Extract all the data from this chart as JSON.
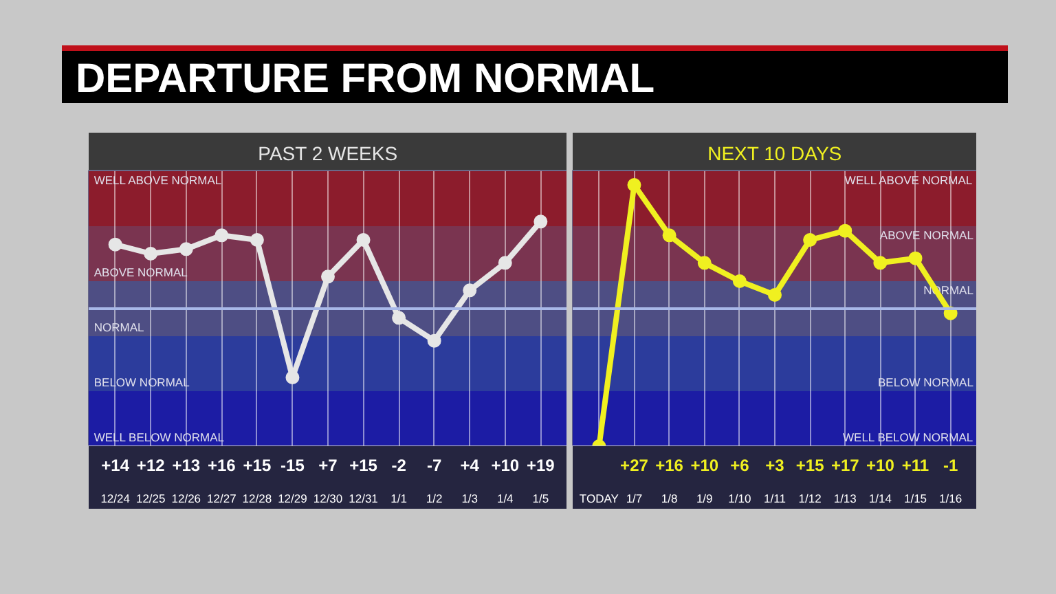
{
  "chart_data": [
    {
      "type": "line",
      "title": "DEPARTURE FROM NORMAL",
      "subtitle": "PAST 2 WEEKS",
      "categories": [
        "12/24",
        "12/25",
        "12/26",
        "12/27",
        "12/28",
        "12/29",
        "12/30",
        "12/31",
        "1/1",
        "1/2",
        "1/3",
        "1/4",
        "1/5"
      ],
      "series": [
        {
          "color": "#e6e6e6",
          "values": [
            14,
            12,
            13,
            16,
            15,
            -15,
            7,
            15,
            -2,
            -7,
            4,
            10,
            19
          ],
          "value_labels": [
            "+14",
            "+12",
            "+13",
            "+16",
            "+15",
            "-15",
            "+7",
            "+15",
            "-2",
            "-7",
            "+4",
            "+10",
            "+19"
          ]
        }
      ],
      "ylim": [
        -30,
        30
      ],
      "tick_labels": "x",
      "grid": "x",
      "marker": "circle",
      "line_style": "solid",
      "bands": [
        {
          "axis": "y",
          "from": 18,
          "to": 30,
          "label": "WELL ABOVE NORMAL",
          "color": "#8c1c2c"
        },
        {
          "axis": "y",
          "from": 6,
          "to": 18,
          "label": "ABOVE NORMAL",
          "color": "#7a3450"
        },
        {
          "axis": "y",
          "from": -6,
          "to": 6,
          "label": "NORMAL",
          "color": "#4e4e84"
        },
        {
          "axis": "y",
          "from": -18,
          "to": -6,
          "label": "BELOW NORMAL",
          "color": "#2c3c9c"
        },
        {
          "axis": "y",
          "from": -30,
          "to": -18,
          "label": "WELL BELOW NORMAL",
          "color": "#1c1ca4"
        }
      ],
      "ref_lines": [
        {
          "axis": "y",
          "value": 0,
          "color": "#a8b8e8"
        }
      ]
    },
    {
      "type": "line",
      "subtitle": "NEXT 10 DAYS",
      "categories": [
        "TODAY",
        "1/7",
        "1/8",
        "1/9",
        "1/10",
        "1/11",
        "1/12",
        "1/13",
        "1/14",
        "1/15",
        "1/16"
      ],
      "series": [
        {
          "color": "#f0f020",
          "values": [
            -30,
            27,
            16,
            10,
            6,
            3,
            15,
            17,
            10,
            11,
            -1
          ],
          "value_labels": [
            null,
            "+27",
            "+16",
            "+10",
            "+6",
            "+3",
            "+15",
            "+17",
            "+10",
            "+11",
            "-1"
          ]
        }
      ],
      "ylim": [
        -30,
        30
      ],
      "tick_labels": "x",
      "grid": "x",
      "marker": "circle",
      "line_style": "solid",
      "bands": [
        {
          "axis": "y",
          "from": 18,
          "to": 30,
          "label": "WELL ABOVE NORMAL",
          "color": "#8c1c2c"
        },
        {
          "axis": "y",
          "from": 6,
          "to": 18,
          "label": "ABOVE NORMAL",
          "color": "#7a3450"
        },
        {
          "axis": "y",
          "from": -6,
          "to": 6,
          "label": "NORMAL",
          "color": "#4e4e84"
        },
        {
          "axis": "y",
          "from": -18,
          "to": -6,
          "label": "BELOW NORMAL",
          "color": "#2c3c9c"
        },
        {
          "axis": "y",
          "from": -30,
          "to": -18,
          "label": "WELL BELOW NORMAL",
          "color": "#1c1ca4"
        }
      ],
      "ref_lines": [
        {
          "axis": "y",
          "value": 0,
          "color": "#a8b8e8"
        }
      ]
    }
  ]
}
